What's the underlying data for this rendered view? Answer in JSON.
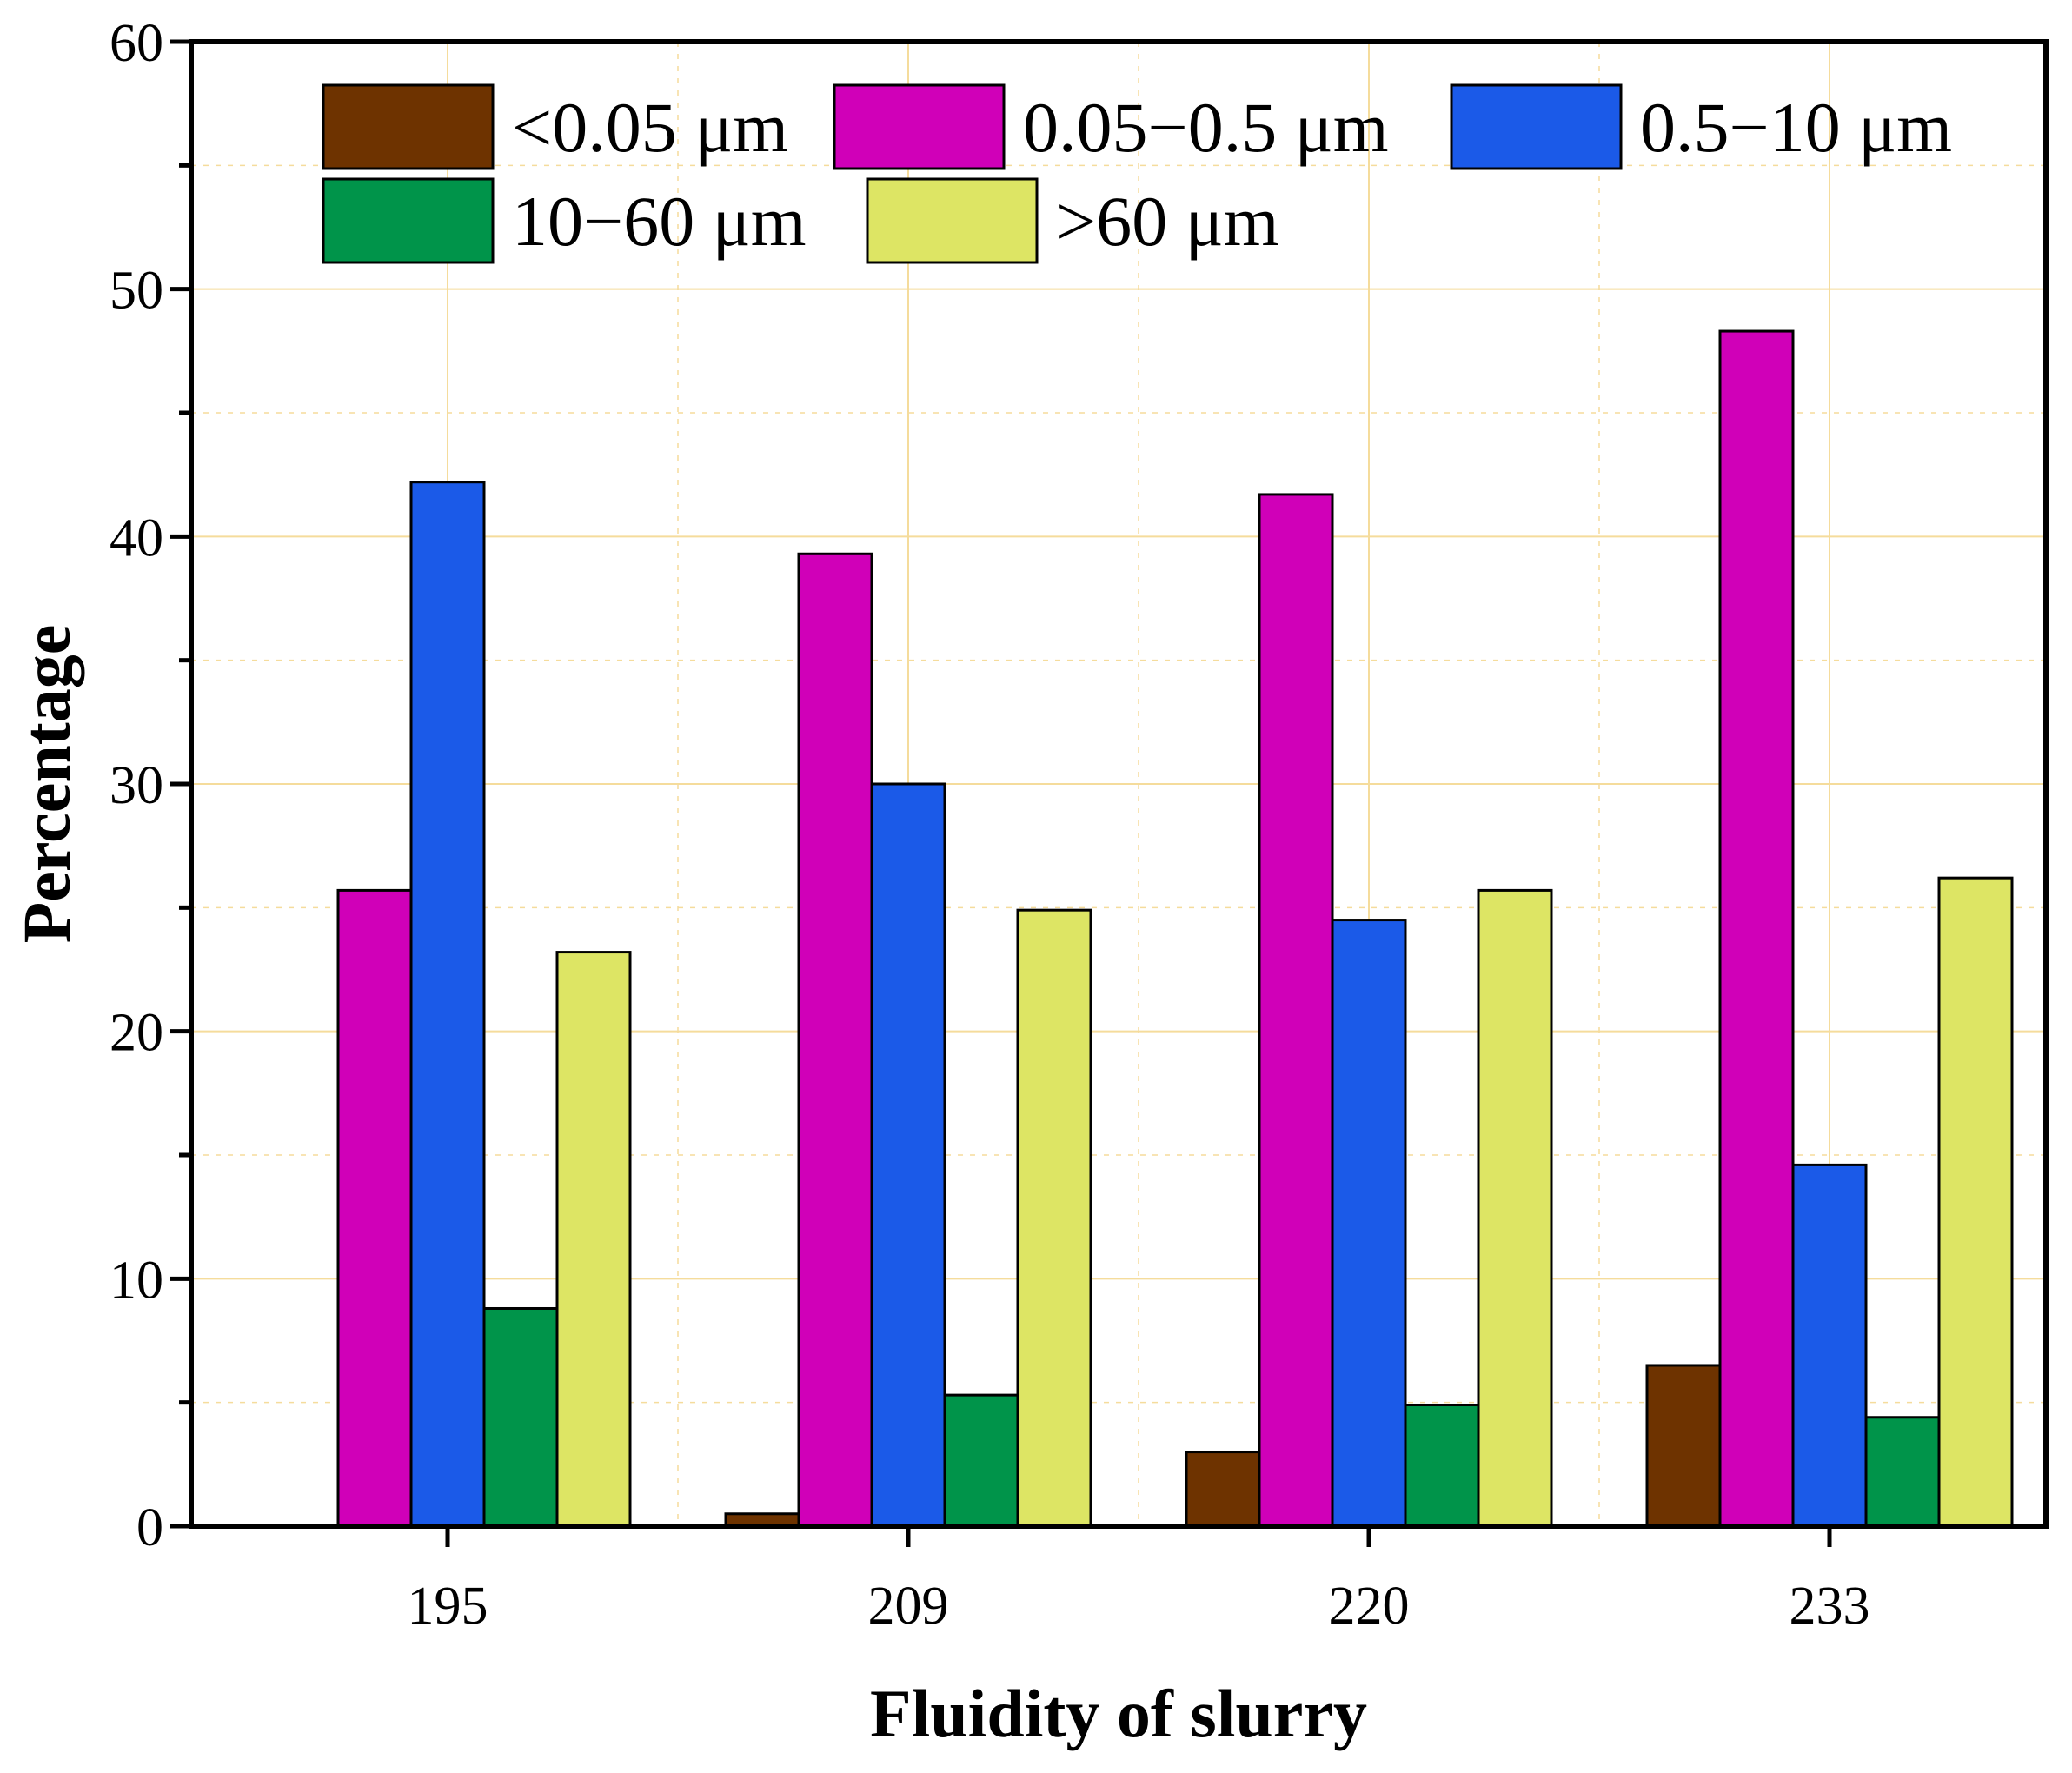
{
  "chart_data": {
    "type": "bar",
    "title": "",
    "xlabel": "Fluidity of slurry",
    "ylabel": "Percentage",
    "categories": [
      "195",
      "209",
      "220",
      "233"
    ],
    "ylim": [
      0,
      60
    ],
    "yticks": [
      0,
      10,
      20,
      30,
      40,
      50,
      60
    ],
    "ytick_labels": [
      "0",
      "10",
      "20",
      "30",
      "40",
      "50",
      "60"
    ],
    "grid": true,
    "legend_position": "top-left",
    "series": [
      {
        "name": "<0.05 μm",
        "color": "#6e3300",
        "values": [
          0.0,
          0.5,
          3.0,
          6.5
        ]
      },
      {
        "name": "0.05−0.5 μm",
        "color": "#d000b8",
        "values": [
          25.7,
          39.3,
          41.7,
          48.3
        ]
      },
      {
        "name": "0.5−10 μm",
        "color": "#1b5ae8",
        "values": [
          42.2,
          30.0,
          24.5,
          14.6
        ]
      },
      {
        "name": "10−60 μm",
        "color": "#00944a",
        "values": [
          8.8,
          5.3,
          4.9,
          4.4
        ]
      },
      {
        "name": ">60 μm",
        "color": "#dde564",
        "values": [
          23.2,
          24.9,
          25.7,
          26.2
        ]
      }
    ]
  },
  "style": {
    "grid_color": "#f5dc9c",
    "axis_color": "#000000"
  }
}
